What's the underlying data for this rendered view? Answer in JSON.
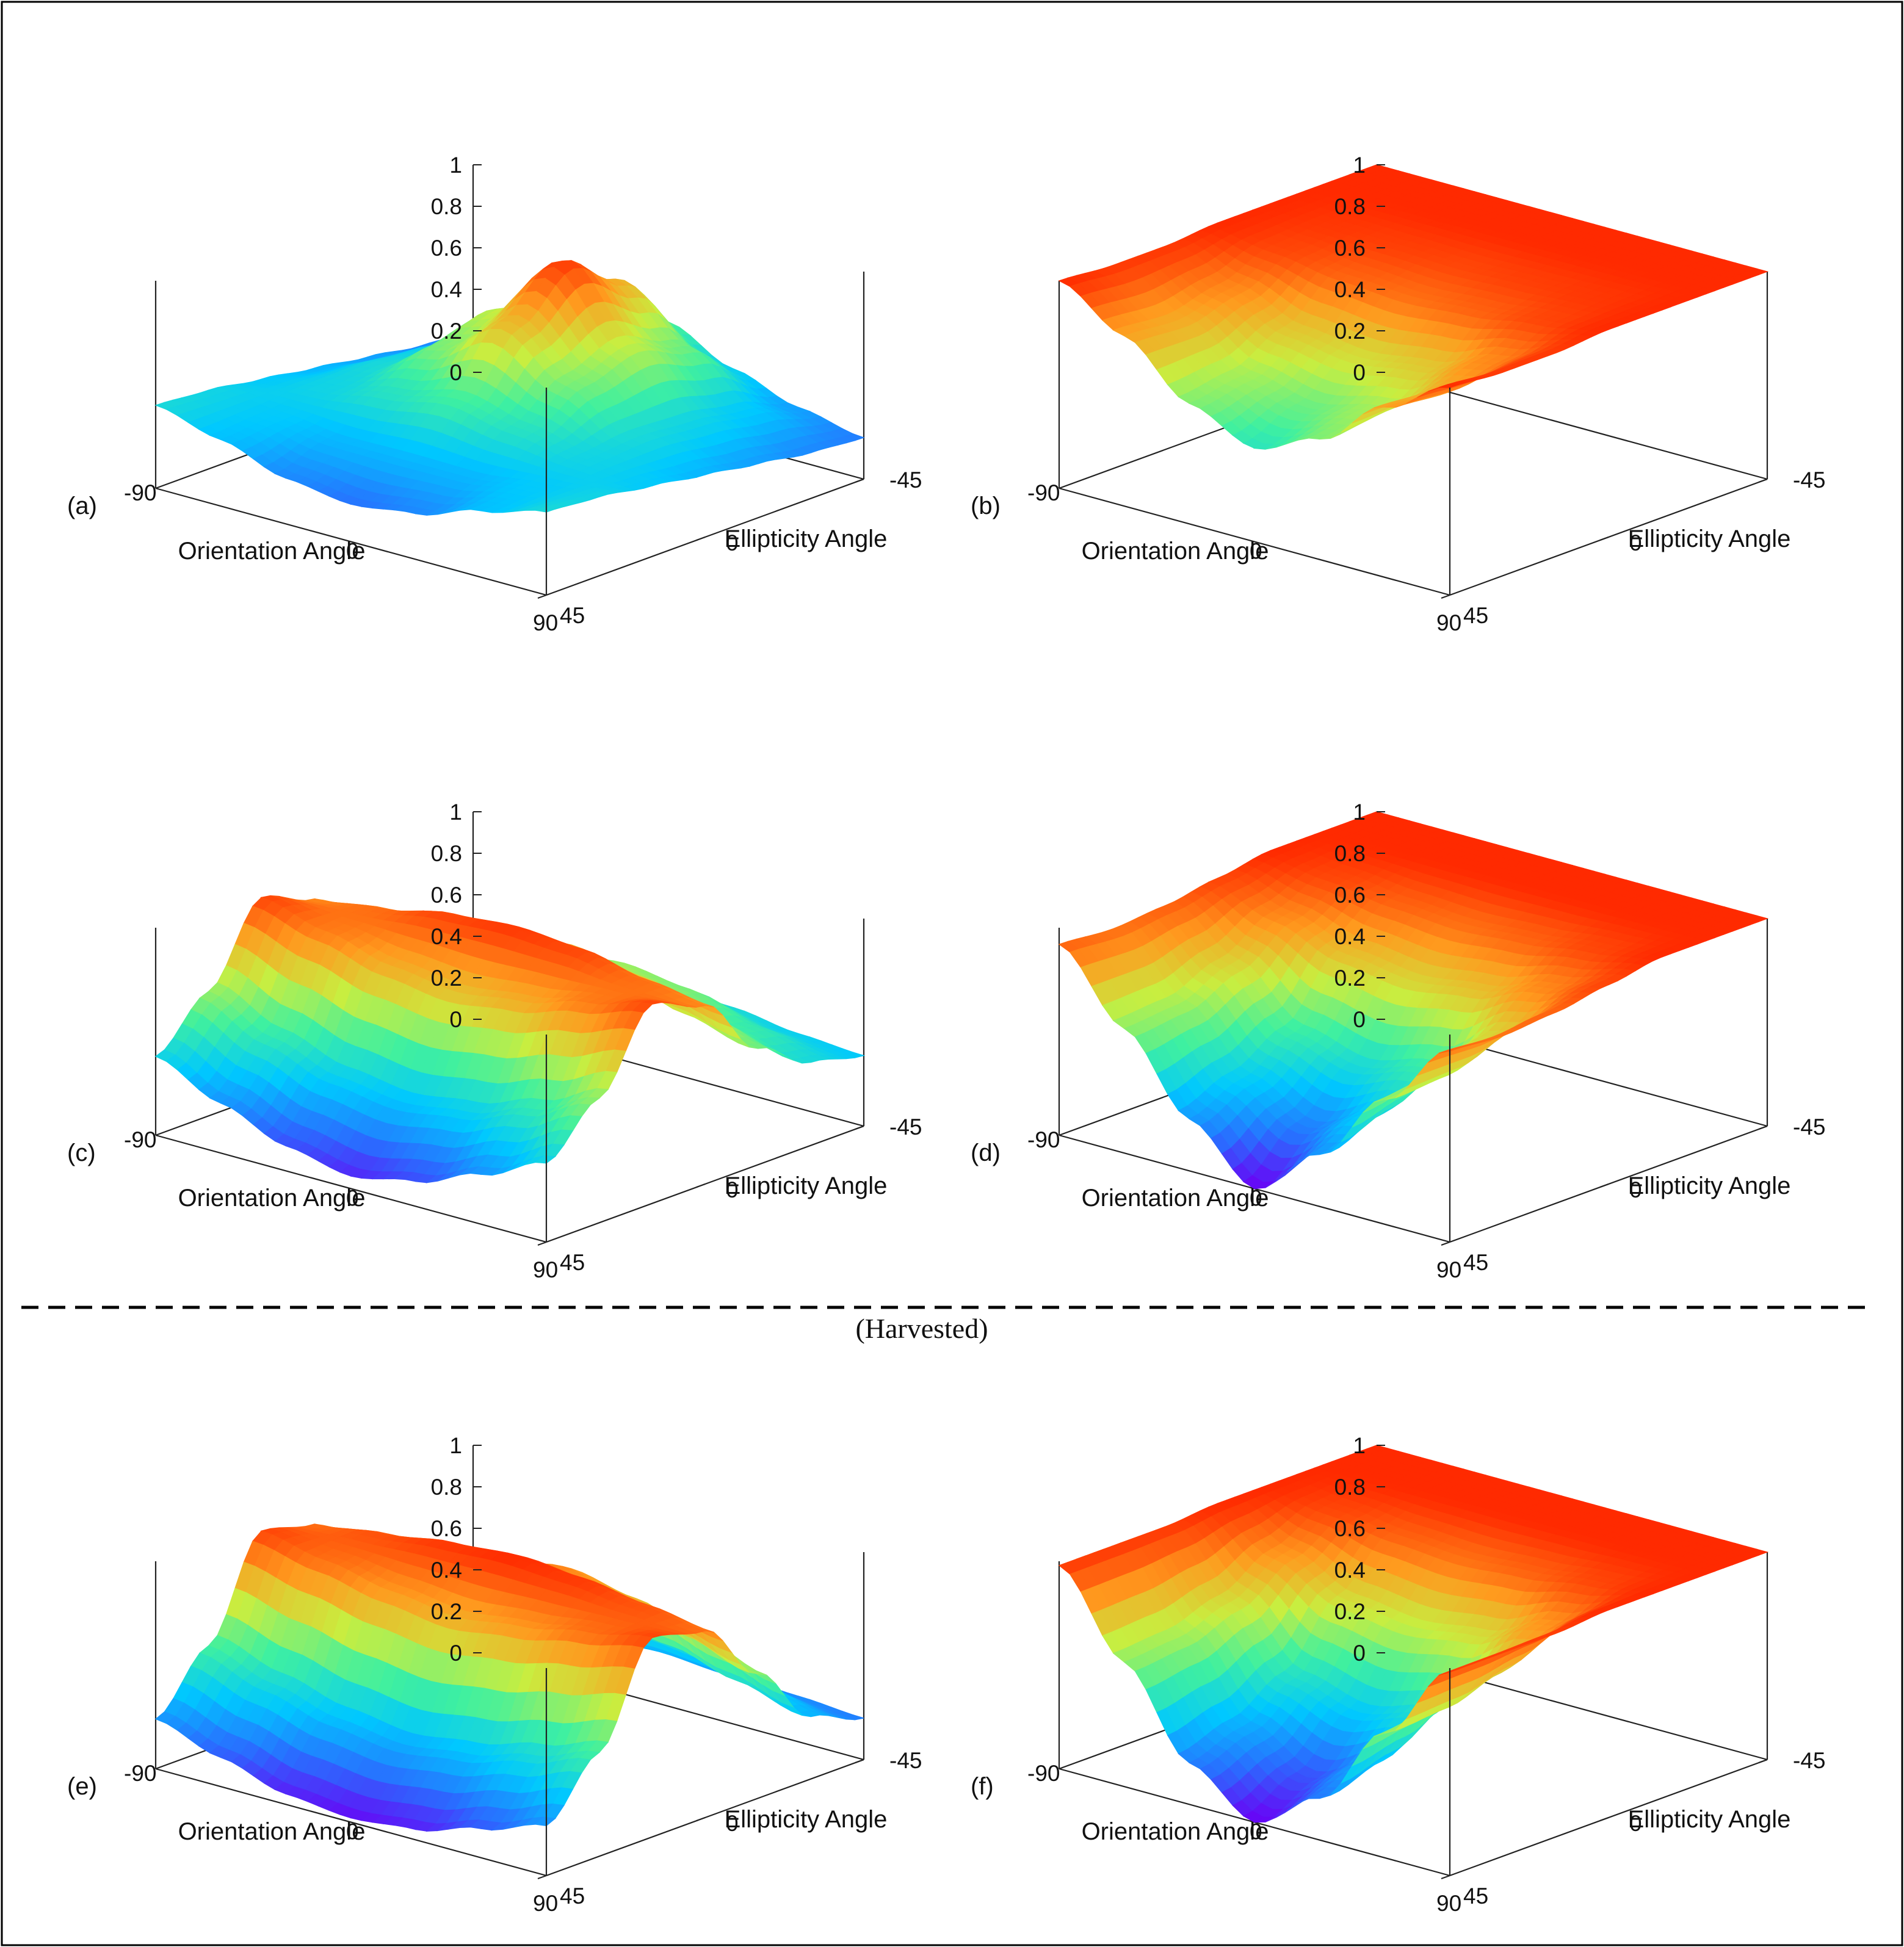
{
  "figure": {
    "divider_label": "(Harvested)",
    "border_color": "#000000"
  },
  "colormap": [
    "#6a00f5",
    "#2a6cff",
    "#00c8ff",
    "#3ff0a0",
    "#c8ee40",
    "#ff9a1e",
    "#ff2a00"
  ],
  "chart_data": [
    {
      "panel": "(a)",
      "type": "surface3d",
      "xlabel": "Orientation Angle",
      "ylabel": "Ellipticity Angle",
      "xlim": [
        -90,
        90
      ],
      "ylim": [
        -45,
        45
      ],
      "zlim": [
        0,
        1
      ],
      "x_ticks": [
        "-90",
        "0",
        "90"
      ],
      "y_ticks": [
        "45",
        "0",
        "-45"
      ],
      "z_ticks": [
        "0",
        "0.2",
        "0.4",
        "0.6",
        "0.8",
        "1"
      ],
      "x": [
        -90,
        -60,
        -30,
        0,
        30,
        60,
        90
      ],
      "y": [
        45,
        30,
        15,
        0,
        -15,
        -30,
        -45
      ],
      "z": [
        [
          0.4,
          0.32,
          0.22,
          0.18,
          0.22,
          0.32,
          0.4
        ],
        [
          0.38,
          0.34,
          0.3,
          0.3,
          0.3,
          0.34,
          0.38
        ],
        [
          0.34,
          0.38,
          0.44,
          0.5,
          0.44,
          0.38,
          0.34
        ],
        [
          0.3,
          0.4,
          0.58,
          0.78,
          0.58,
          0.4,
          0.3
        ],
        [
          0.26,
          0.38,
          0.66,
          0.98,
          0.66,
          0.38,
          0.26
        ],
        [
          0.22,
          0.34,
          0.56,
          0.8,
          0.56,
          0.34,
          0.22
        ],
        [
          0.2,
          0.26,
          0.36,
          0.5,
          0.36,
          0.26,
          0.2
        ]
      ]
    },
    {
      "panel": "(b)",
      "type": "surface3d",
      "xlabel": "Orientation Angle",
      "ylabel": "Ellipticity Angle",
      "xlim": [
        -90,
        90
      ],
      "ylim": [
        -45,
        45
      ],
      "zlim": [
        0,
        1
      ],
      "x_ticks": [
        "-90",
        "0",
        "90"
      ],
      "y_ticks": [
        "45",
        "0",
        "-45"
      ],
      "z_ticks": [
        "0",
        "0.2",
        "0.4",
        "0.6",
        "0.8",
        "1"
      ],
      "x": [
        -90,
        -60,
        -30,
        0,
        30,
        60,
        90
      ],
      "y": [
        45,
        30,
        15,
        0,
        -15,
        -30,
        -45
      ],
      "z": [
        [
          1.0,
          0.82,
          0.58,
          0.45,
          0.58,
          0.82,
          1.0
        ],
        [
          0.98,
          0.8,
          0.62,
          0.55,
          0.62,
          0.8,
          0.98
        ],
        [
          0.98,
          0.86,
          0.74,
          0.7,
          0.74,
          0.86,
          0.98
        ],
        [
          1.0,
          0.96,
          0.92,
          0.9,
          0.92,
          0.96,
          1.0
        ],
        [
          1.0,
          0.98,
          0.97,
          0.96,
          0.97,
          0.98,
          1.0
        ],
        [
          1.0,
          1.0,
          1.0,
          1.0,
          1.0,
          1.0,
          1.0
        ],
        [
          1.0,
          1.0,
          1.0,
          1.0,
          1.0,
          1.0,
          1.0
        ]
      ]
    },
    {
      "panel": "(c)",
      "type": "surface3d",
      "xlabel": "Orientation Angle",
      "ylabel": "Ellipticity Angle",
      "xlim": [
        -90,
        90
      ],
      "ylim": [
        -45,
        45
      ],
      "zlim": [
        0,
        1
      ],
      "x_ticks": [
        "-90",
        "0",
        "90"
      ],
      "y_ticks": [
        "45",
        "0",
        "-45"
      ],
      "z_ticks": [
        "0",
        "0.2",
        "0.4",
        "0.6",
        "0.8",
        "1"
      ],
      "x": [
        -90,
        -60,
        -30,
        0,
        30,
        60,
        90
      ],
      "y": [
        45,
        30,
        15,
        0,
        -15,
        -30,
        -45
      ],
      "z": [
        [
          0.38,
          0.24,
          0.12,
          0.06,
          0.12,
          0.24,
          0.38
        ],
        [
          0.6,
          0.46,
          0.36,
          0.32,
          0.36,
          0.46,
          0.6
        ],
        [
          0.96,
          0.88,
          0.8,
          0.76,
          0.8,
          0.88,
          0.96
        ],
        [
          0.86,
          0.9,
          0.96,
          0.98,
          0.96,
          0.9,
          0.86
        ],
        [
          0.56,
          0.64,
          0.74,
          0.8,
          0.74,
          0.64,
          0.56
        ],
        [
          0.4,
          0.48,
          0.58,
          0.62,
          0.58,
          0.48,
          0.4
        ],
        [
          0.34,
          0.36,
          0.4,
          0.42,
          0.4,
          0.36,
          0.34
        ]
      ]
    },
    {
      "panel": "(d)",
      "type": "surface3d",
      "xlabel": "Orientation Angle",
      "ylabel": "Ellipticity Angle",
      "xlim": [
        -90,
        90
      ],
      "ylim": [
        -45,
        45
      ],
      "zlim": [
        0,
        1
      ],
      "x_ticks": [
        "-90",
        "0",
        "90"
      ],
      "y_ticks": [
        "45",
        "0",
        "-45"
      ],
      "z_ticks": [
        "0",
        "0.2",
        "0.4",
        "0.6",
        "0.8",
        "1"
      ],
      "x": [
        -90,
        -60,
        -30,
        0,
        30,
        60,
        90
      ],
      "y": [
        45,
        30,
        15,
        0,
        -15,
        -30,
        -45
      ],
      "z": [
        [
          0.92,
          0.6,
          0.25,
          0.0,
          0.25,
          0.6,
          0.92
        ],
        [
          0.9,
          0.62,
          0.35,
          0.2,
          0.35,
          0.62,
          0.9
        ],
        [
          0.92,
          0.72,
          0.48,
          0.4,
          0.48,
          0.72,
          0.92
        ],
        [
          0.96,
          0.86,
          0.76,
          0.72,
          0.76,
          0.86,
          0.96
        ],
        [
          1.0,
          0.96,
          0.92,
          0.9,
          0.92,
          0.96,
          1.0
        ],
        [
          1.0,
          1.0,
          1.0,
          1.0,
          1.0,
          1.0,
          1.0
        ],
        [
          1.0,
          1.0,
          1.0,
          1.0,
          1.0,
          1.0,
          1.0
        ]
      ]
    },
    {
      "panel": "(e)",
      "type": "surface3d",
      "xlabel": "Orientation Angle",
      "ylabel": "Ellipticity Angle",
      "xlim": [
        -90,
        90
      ],
      "ylim": [
        -45,
        45
      ],
      "zlim": [
        0,
        1
      ],
      "x_ticks": [
        "-90",
        "0",
        "90"
      ],
      "y_ticks": [
        "45",
        "0",
        "-45"
      ],
      "z_ticks": [
        "0",
        "0.2",
        "0.4",
        "0.6",
        "0.8",
        "1"
      ],
      "x": [
        -90,
        -60,
        -30,
        0,
        30,
        60,
        90
      ],
      "y": [
        45,
        30,
        15,
        0,
        -15,
        -30,
        -45
      ],
      "z": [
        [
          0.24,
          0.14,
          0.05,
          0.02,
          0.05,
          0.14,
          0.24
        ],
        [
          0.5,
          0.4,
          0.32,
          0.28,
          0.32,
          0.4,
          0.5
        ],
        [
          0.96,
          0.9,
          0.84,
          0.8,
          0.84,
          0.9,
          0.96
        ],
        [
          0.9,
          0.94,
          0.98,
          1.0,
          0.98,
          0.94,
          0.9
        ],
        [
          0.6,
          0.7,
          0.8,
          0.86,
          0.8,
          0.7,
          0.6
        ],
        [
          0.3,
          0.38,
          0.46,
          0.5,
          0.46,
          0.38,
          0.3
        ],
        [
          0.2,
          0.22,
          0.24,
          0.26,
          0.24,
          0.22,
          0.2
        ]
      ]
    },
    {
      "panel": "(f)",
      "type": "surface3d",
      "xlabel": "Orientation Angle",
      "ylabel": "Ellipticity Angle",
      "xlim": [
        -90,
        90
      ],
      "ylim": [
        -45,
        45
      ],
      "zlim": [
        0,
        1
      ],
      "x_ticks": [
        "-90",
        "0",
        "90"
      ],
      "y_ticks": [
        "45",
        "0",
        "-45"
      ],
      "z_ticks": [
        "0",
        "0.2",
        "0.4",
        "0.6",
        "0.8",
        "1"
      ],
      "x": [
        -90,
        -60,
        -30,
        0,
        30,
        60,
        90
      ],
      "y": [
        45,
        30,
        15,
        0,
        -15,
        -30,
        -45
      ],
      "z": [
        [
          0.98,
          0.6,
          0.2,
          0.0,
          0.2,
          0.6,
          0.98
        ],
        [
          0.98,
          0.62,
          0.28,
          0.12,
          0.28,
          0.62,
          0.98
        ],
        [
          0.98,
          0.7,
          0.42,
          0.34,
          0.42,
          0.7,
          0.98
        ],
        [
          1.0,
          0.84,
          0.7,
          0.66,
          0.7,
          0.84,
          1.0
        ],
        [
          1.0,
          0.96,
          0.92,
          0.9,
          0.92,
          0.96,
          1.0
        ],
        [
          1.0,
          1.0,
          1.0,
          1.0,
          1.0,
          1.0,
          1.0
        ],
        [
          1.0,
          1.0,
          1.0,
          1.0,
          1.0,
          1.0,
          1.0
        ]
      ]
    }
  ]
}
